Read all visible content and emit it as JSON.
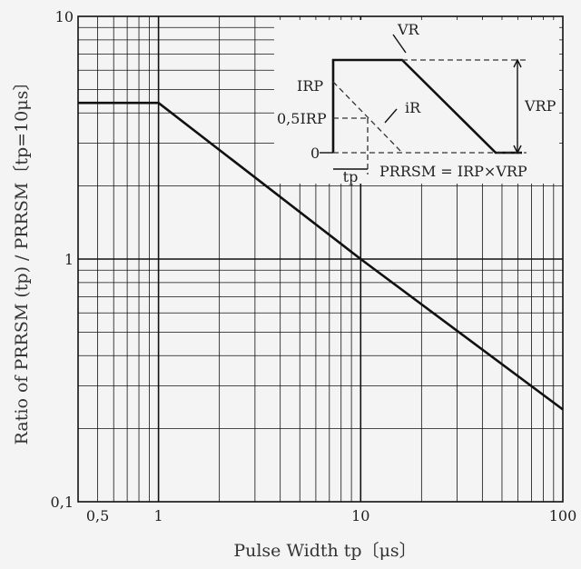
{
  "chart_data": {
    "type": "line",
    "xscale": "log",
    "yscale": "log",
    "xlim": [
      0.4,
      100
    ],
    "ylim": [
      0.1,
      10
    ],
    "grid": true,
    "xlabel": "Pulse Width  tp〔μs〕",
    "ylabel": "Ratio of PRRSM (tp) / PRRSM〔tp=10μs〕",
    "x_ticks": [
      {
        "value": 0.5,
        "label": "0,5"
      },
      {
        "value": 1,
        "label": "1"
      },
      {
        "value": 10,
        "label": "10"
      },
      {
        "value": 100,
        "label": "100"
      }
    ],
    "y_ticks": [
      {
        "value": 0.1,
        "label": "0,1"
      },
      {
        "value": 1,
        "label": "1"
      },
      {
        "value": 10,
        "label": "10"
      }
    ],
    "series": [
      {
        "x": [
          0.4,
          1,
          10,
          100
        ],
        "y": [
          4.4,
          4.4,
          1.0,
          0.24
        ]
      }
    ],
    "inset": {
      "labels": {
        "vr": "VR",
        "irp": "IRP",
        "half_irp": "0,5IRP",
        "ir": "iR",
        "zero": "0",
        "vrp": "VRP",
        "tp": "tp",
        "formula": "PRRSM = IRP×VRP"
      }
    }
  }
}
